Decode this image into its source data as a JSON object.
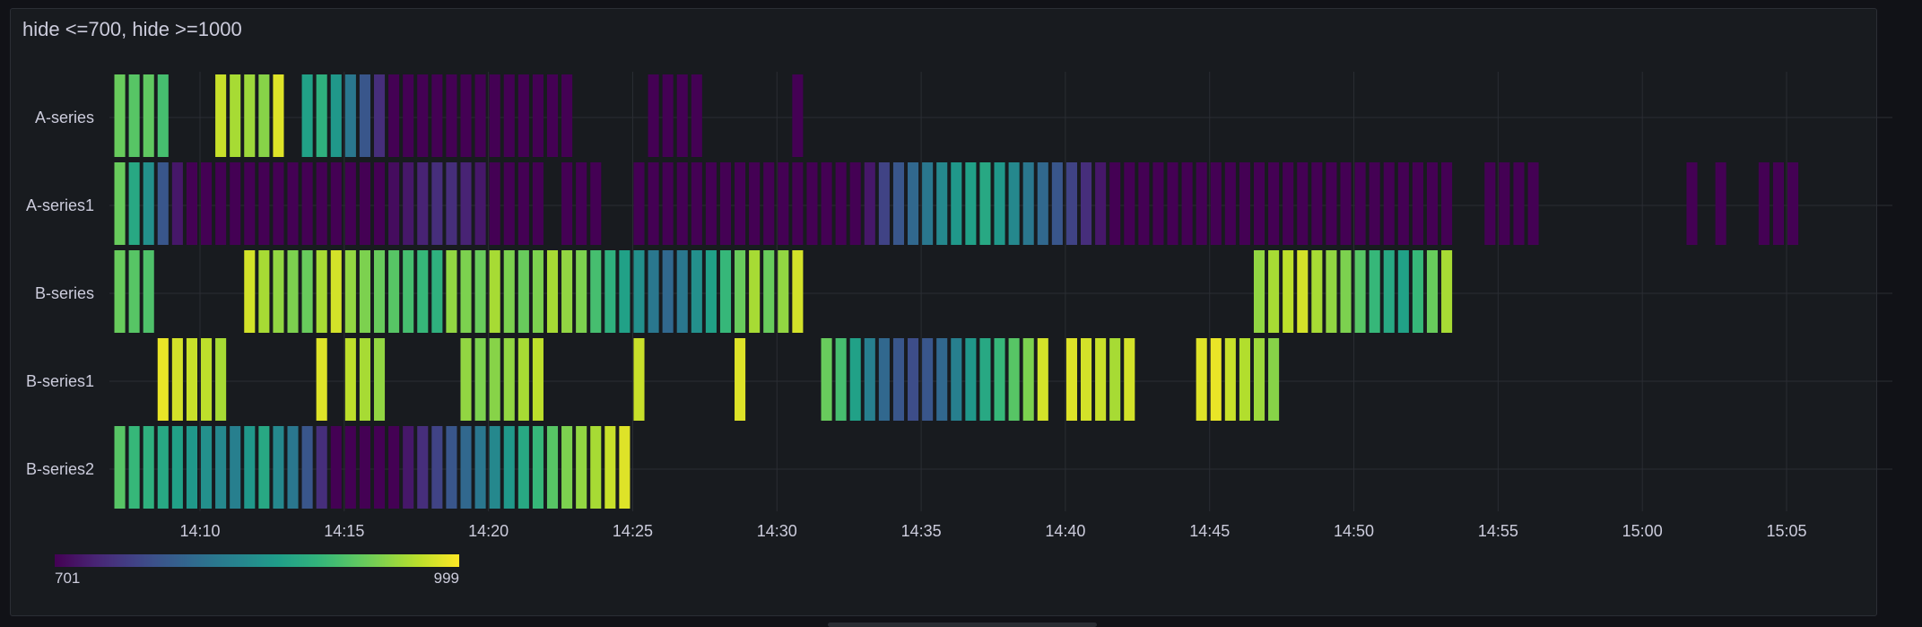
{
  "panel": {
    "title": "hide <=700, hide >=1000"
  },
  "colors": {
    "background": "#181b1f",
    "grid": "#2a2d33",
    "text": "#ccccdc"
  },
  "chart_data": {
    "type": "heatmap",
    "title": "hide <=700, hide >=1000",
    "color_scale": "viridis",
    "legend": {
      "placement": "bottom-left",
      "min_label": "701",
      "max_label": "999",
      "min": 701,
      "max": 999
    },
    "x_ticks": [
      "14:10",
      "14:15",
      "14:20",
      "14:25",
      "14:30",
      "14:35",
      "14:40",
      "14:45",
      "14:50",
      "14:55",
      "15:00",
      "15:05"
    ],
    "x_start": "14:07:00",
    "x_end": "15:07:30",
    "bucket_seconds": 30,
    "grid": true,
    "series": [
      {
        "name": "A-series",
        "start": "14:07:00",
        "values": [
          930,
          920,
          925,
          910,
          null,
          null,
          null,
          975,
          960,
          955,
          945,
          985,
          null,
          870,
          890,
          860,
          820,
          780,
          740,
          700,
          650,
          600,
          560,
          530,
          500,
          480,
          460,
          440,
          420,
          400,
          380,
          360,
          null,
          null,
          null,
          null,
          null,
          460,
          440,
          410,
          380,
          null,
          null,
          null,
          null,
          null,
          null,
          380
        ]
      },
      {
        "name": "A-series1",
        "start": "14:07:00",
        "values": [
          930,
          880,
          850,
          780,
          720,
          700,
          690,
          680,
          670,
          660,
          650,
          640,
          640,
          650,
          660,
          670,
          680,
          690,
          700,
          710,
          720,
          730,
          740,
          740,
          730,
          720,
          690,
          640,
          580,
          470,
          null,
          440,
          420,
          400,
          null,
          null,
          400,
          480,
          520,
          560,
          600,
          640,
          560,
          500,
          470,
          420,
          480,
          520,
          560,
          600,
          640,
          680,
          720,
          760,
          780,
          800,
          820,
          840,
          860,
          870,
          880,
          860,
          840,
          820,
          800,
          780,
          760,
          740,
          720,
          700,
          690,
          680,
          670,
          660,
          650,
          640,
          620,
          600,
          580,
          570,
          560,
          540,
          520,
          500,
          480,
          460,
          440,
          420,
          400,
          390,
          380,
          370,
          360,
          null,
          null,
          360,
          390,
          400,
          380,
          null,
          null,
          null,
          null,
          null,
          null,
          null,
          null,
          null,
          null,
          370,
          null,
          370,
          null,
          null,
          360,
          370,
          360
        ]
      },
      {
        "name": "B-series",
        "start": "14:07:00",
        "values": [
          930,
          920,
          915,
          null,
          null,
          null,
          null,
          null,
          null,
          980,
          960,
          950,
          940,
          930,
          960,
          980,
          950,
          940,
          930,
          920,
          910,
          900,
          890,
          950,
          940,
          930,
          960,
          940,
          930,
          940,
          960,
          950,
          940,
          910,
          890,
          870,
          850,
          820,
          800,
          820,
          850,
          870,
          900,
          930,
          960,
          930,
          950,
          980,
          null,
          null,
          null,
          null,
          null,
          null,
          null,
          null,
          null,
          null,
          null,
          null,
          null,
          null,
          null,
          null,
          null,
          null,
          null,
          null,
          null,
          null,
          null,
          null,
          null,
          null,
          null,
          null,
          null,
          null,
          null,
          950,
          960,
          970,
          980,
          960,
          950,
          940,
          920,
          900,
          880,
          870,
          900,
          930,
          960
        ]
      },
      {
        "name": "B-series1",
        "start": "14:07:00",
        "values": [
          null,
          null,
          null,
          990,
          980,
          975,
          970,
          960,
          null,
          null,
          null,
          null,
          null,
          null,
          985,
          null,
          970,
          960,
          950,
          null,
          null,
          null,
          null,
          null,
          950,
          940,
          945,
          950,
          960,
          970,
          null,
          null,
          null,
          null,
          null,
          null,
          975,
          null,
          null,
          null,
          null,
          null,
          null,
          985,
          null,
          null,
          null,
          null,
          null,
          930,
          910,
          870,
          830,
          800,
          780,
          770,
          780,
          800,
          830,
          860,
          880,
          900,
          920,
          940,
          980,
          null,
          985,
          980,
          975,
          960,
          980,
          null,
          null,
          null,
          null,
          985,
          990,
          975,
          965,
          955,
          945
        ]
      },
      {
        "name": "B-series2",
        "start": "14:07:00",
        "values": [
          920,
          900,
          890,
          880,
          870,
          860,
          850,
          840,
          830,
          860,
          880,
          840,
          820,
          780,
          740,
          700,
          650,
          600,
          640,
          690,
          720,
          740,
          760,
          780,
          800,
          820,
          840,
          860,
          880,
          900,
          920,
          940,
          950,
          960,
          975,
          985
        ]
      }
    ]
  }
}
